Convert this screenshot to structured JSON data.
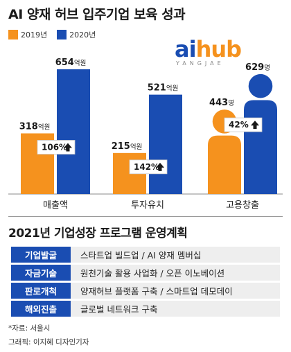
{
  "title": "AI 양재 허브 입주기업 보육 성과",
  "legend": [
    {
      "label": "2019년",
      "color": "#f5921e"
    },
    {
      "label": "2020년",
      "color": "#1a4db2"
    }
  ],
  "logo": {
    "main_a": "ai",
    "main_b": "hub",
    "sub": "YANGJAE"
  },
  "chart_data": {
    "type": "bar",
    "categories": [
      "매출액",
      "투자유치",
      "고용창출"
    ],
    "series": [
      {
        "name": "2019년",
        "values": [
          318,
          215,
          443
        ]
      },
      {
        "name": "2020년",
        "values": [
          654,
          521,
          629
        ]
      }
    ],
    "units": [
      "억원",
      "억원",
      "명"
    ],
    "growth": [
      "106%",
      "142%",
      "42%"
    ],
    "ylim": [
      0,
      654
    ]
  },
  "program": {
    "title": "2021년 기업성장 프로그램 운영계획",
    "rows": [
      {
        "label": "기업발굴",
        "value": "스타트업 빌드업 / AI 양재 멤버십"
      },
      {
        "label": "자금기술",
        "value": "원천기술 활용 사업화 / 오픈 이노베이션"
      },
      {
        "label": "판로개척",
        "value": "양재허브 플랫폼 구축 / 스마트업 데모데이"
      },
      {
        "label": "해외진출",
        "value": "글로벌 네트워크 구축"
      }
    ]
  },
  "source": "*자료: 서울시",
  "credit": "그래픽: 이지혜 디자인기자"
}
